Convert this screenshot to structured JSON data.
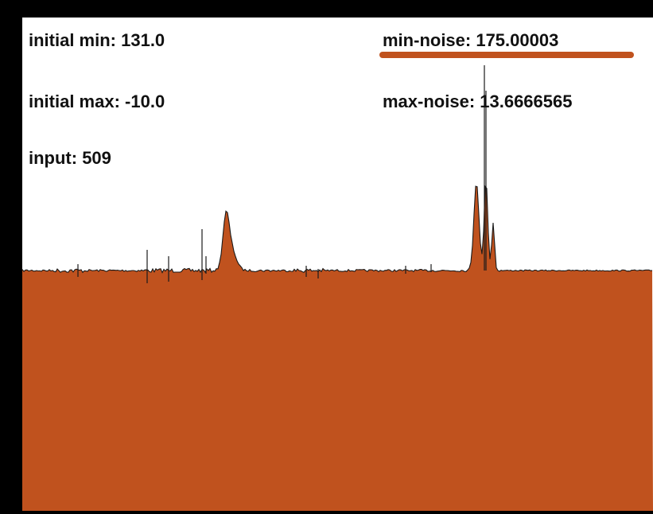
{
  "readouts": {
    "initial_min": "initial min: 131.0",
    "initial_max": "initial max: -10.0",
    "input": "input: 509",
    "min_noise": "min-noise:  175.00003",
    "max_noise": "max-noise: 13.6666565"
  },
  "colors": {
    "fill": "#c0521e",
    "frame": "#000000",
    "background": "#ffffff",
    "outline": "#1a1a1a",
    "highlight_underline": "#c0521e"
  }
}
